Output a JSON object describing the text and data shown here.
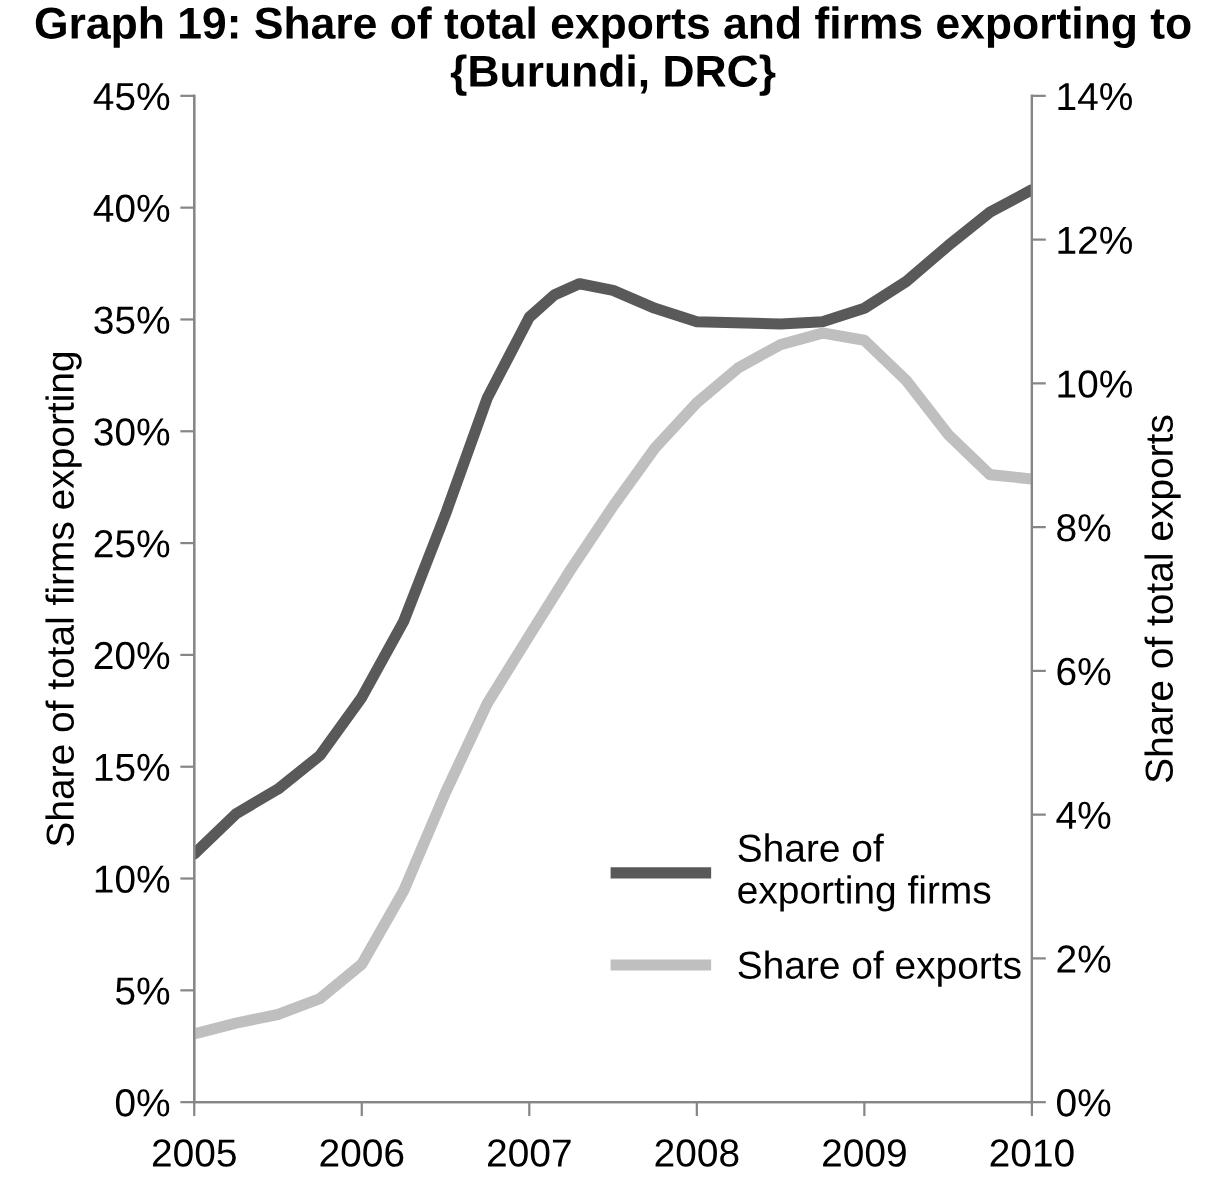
{
  "chart_data": {
    "type": "line",
    "title": "Graph 19: Share of total exports and firms exporting to {Burundi, DRC}",
    "ylabel": "Share of total firms exporting",
    "y2label": "Share of total exports",
    "series": [
      {
        "name": "Share of exporting firms",
        "color": "#595959",
        "x": [
          2005,
          2005.25,
          2005.5,
          2005.75,
          2006,
          2006.25,
          2006.5,
          2006.75,
          2007,
          2007.15,
          2007.3,
          2007.5,
          2007.75,
          2008,
          2008.5,
          2008.75,
          2009,
          2009.25,
          2009.5,
          2009.75,
          2010
        ],
        "values": [
          11.1,
          12.9,
          14.0,
          15.5,
          18.1,
          21.5,
          26.3,
          31.5,
          35.1,
          36.1,
          36.6,
          36.3,
          35.5,
          34.9,
          34.8,
          34.9,
          35.5,
          36.7,
          38.3,
          39.8,
          40.8
        ]
      },
      {
        "name": "Share of exports",
        "color": "#bfbfbf",
        "axis": "y2",
        "x": [
          2005,
          2005.25,
          2005.5,
          2005.75,
          2006,
          2006.25,
          2006.5,
          2006.75,
          2007,
          2007.25,
          2007.5,
          2007.75,
          2008,
          2008.25,
          2008.5,
          2008.75,
          2009,
          2009.25,
          2009.5,
          2009.75,
          2010
        ],
        "values": [
          0.95,
          1.1,
          1.22,
          1.44,
          1.92,
          2.94,
          4.31,
          5.55,
          6.49,
          7.42,
          8.29,
          9.1,
          9.73,
          10.22,
          10.54,
          10.7,
          10.6,
          10.04,
          9.29,
          8.73,
          8.67
        ]
      }
    ],
    "xlim": [
      2005,
      2010
    ],
    "xticks": [
      2005,
      2006,
      2007,
      2008,
      2009,
      2010
    ],
    "ylim": [
      0,
      45
    ],
    "yticks": [
      {
        "value": 0,
        "label": "0%"
      },
      {
        "value": 5,
        "label": "5%"
      },
      {
        "value": 10,
        "label": "10%"
      },
      {
        "value": 15,
        "label": "15%"
      },
      {
        "value": 20,
        "label": "20%"
      },
      {
        "value": 25,
        "label": "25%"
      },
      {
        "value": 30,
        "label": "30%"
      },
      {
        "value": 35,
        "label": "35%"
      },
      {
        "value": 40,
        "label": "40%"
      },
      {
        "value": 45,
        "label": "45%"
      }
    ],
    "y2lim": [
      0,
      14
    ],
    "y2ticks": [
      {
        "value": 0,
        "label": "0%"
      },
      {
        "value": 2,
        "label": "2%"
      },
      {
        "value": 4,
        "label": "4%"
      },
      {
        "value": 6,
        "label": "6%"
      },
      {
        "value": 8,
        "label": "8%"
      },
      {
        "value": 10,
        "label": "10%"
      },
      {
        "value": 12,
        "label": "12%"
      },
      {
        "value": 14,
        "label": "14%"
      }
    ],
    "grid": false,
    "legend": "bottom right",
    "marker": "none",
    "line_style": "solid"
  }
}
